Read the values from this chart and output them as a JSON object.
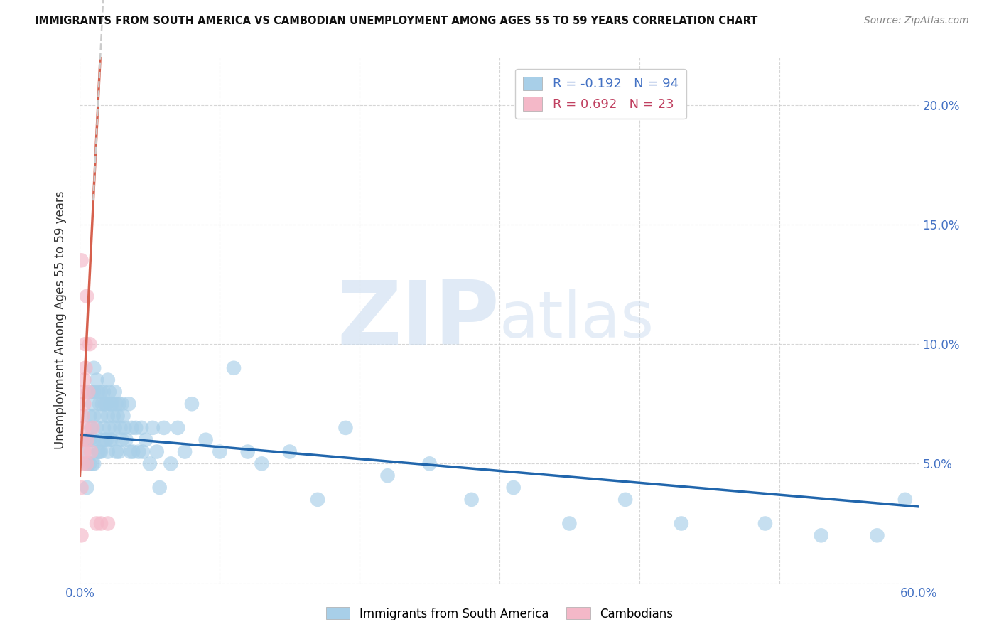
{
  "title": "IMMIGRANTS FROM SOUTH AMERICA VS CAMBODIAN UNEMPLOYMENT AMONG AGES 55 TO 59 YEARS CORRELATION CHART",
  "source": "Source: ZipAtlas.com",
  "ylabel": "Unemployment Among Ages 55 to 59 years",
  "watermark": "ZIPatlas",
  "xlim": [
    0.0,
    0.6
  ],
  "ylim": [
    0.0,
    0.22
  ],
  "legend_blue_r": "-0.192",
  "legend_blue_n": "94",
  "legend_pink_r": "0.692",
  "legend_pink_n": "23",
  "blue_color": "#a8cfe8",
  "pink_color": "#f4b8c8",
  "blue_line_color": "#2166ac",
  "pink_line_color": "#d6604d",
  "pink_dash_color": "#e8a0a0",
  "blue_scatter_x": [
    0.005,
    0.005,
    0.005,
    0.005,
    0.007,
    0.007,
    0.007,
    0.008,
    0.008,
    0.009,
    0.009,
    0.009,
    0.01,
    0.01,
    0.01,
    0.01,
    0.01,
    0.012,
    0.012,
    0.013,
    0.013,
    0.014,
    0.014,
    0.015,
    0.015,
    0.015,
    0.016,
    0.016,
    0.017,
    0.017,
    0.018,
    0.018,
    0.019,
    0.019,
    0.02,
    0.02,
    0.02,
    0.021,
    0.021,
    0.022,
    0.022,
    0.023,
    0.023,
    0.024,
    0.025,
    0.025,
    0.026,
    0.026,
    0.027,
    0.028,
    0.028,
    0.029,
    0.03,
    0.03,
    0.031,
    0.032,
    0.033,
    0.035,
    0.036,
    0.037,
    0.038,
    0.04,
    0.042,
    0.044,
    0.045,
    0.047,
    0.05,
    0.052,
    0.055,
    0.057,
    0.06,
    0.065,
    0.07,
    0.075,
    0.08,
    0.09,
    0.1,
    0.11,
    0.12,
    0.13,
    0.15,
    0.17,
    0.19,
    0.22,
    0.25,
    0.28,
    0.31,
    0.35,
    0.39,
    0.43,
    0.49,
    0.53,
    0.57,
    0.59
  ],
  "blue_scatter_y": [
    0.06,
    0.055,
    0.05,
    0.04,
    0.07,
    0.06,
    0.05,
    0.08,
    0.065,
    0.075,
    0.06,
    0.05,
    0.09,
    0.08,
    0.07,
    0.06,
    0.05,
    0.085,
    0.065,
    0.08,
    0.055,
    0.075,
    0.055,
    0.08,
    0.07,
    0.055,
    0.075,
    0.06,
    0.08,
    0.065,
    0.075,
    0.06,
    0.075,
    0.06,
    0.085,
    0.07,
    0.055,
    0.08,
    0.065,
    0.075,
    0.06,
    0.075,
    0.06,
    0.07,
    0.08,
    0.065,
    0.075,
    0.055,
    0.07,
    0.075,
    0.055,
    0.065,
    0.075,
    0.06,
    0.07,
    0.065,
    0.06,
    0.075,
    0.055,
    0.065,
    0.055,
    0.065,
    0.055,
    0.065,
    0.055,
    0.06,
    0.05,
    0.065,
    0.055,
    0.04,
    0.065,
    0.05,
    0.065,
    0.055,
    0.075,
    0.06,
    0.055,
    0.09,
    0.055,
    0.05,
    0.055,
    0.035,
    0.065,
    0.045,
    0.05,
    0.035,
    0.04,
    0.025,
    0.035,
    0.025,
    0.025,
    0.02,
    0.02,
    0.035
  ],
  "pink_scatter_x": [
    0.001,
    0.001,
    0.001,
    0.002,
    0.002,
    0.002,
    0.002,
    0.003,
    0.003,
    0.003,
    0.003,
    0.004,
    0.004,
    0.005,
    0.005,
    0.005,
    0.006,
    0.007,
    0.008,
    0.009,
    0.012,
    0.015,
    0.02
  ],
  "pink_scatter_y": [
    0.02,
    0.04,
    0.135,
    0.05,
    0.06,
    0.07,
    0.08,
    0.055,
    0.065,
    0.075,
    0.085,
    0.09,
    0.1,
    0.05,
    0.06,
    0.12,
    0.08,
    0.1,
    0.055,
    0.065,
    0.025,
    0.025,
    0.025
  ],
  "pink_line_slope": 12.0,
  "pink_line_intercept": 0.045,
  "blue_line_slope": -0.05,
  "blue_line_intercept": 0.062
}
